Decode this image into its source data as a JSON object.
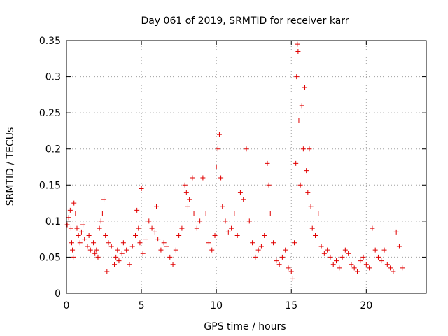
{
  "chart_data": {
    "type": "scatter",
    "title": "Day 061 of 2019, SRMTID for receiver karr",
    "xlabel": "GPS time / hours",
    "ylabel": "SRMTID / TECUs",
    "xlim": [
      0,
      24
    ],
    "ylim": [
      0,
      0.35
    ],
    "xticks": [
      0,
      5,
      10,
      15,
      20
    ],
    "yticks": [
      0,
      0.05,
      0.1,
      0.15,
      0.2,
      0.25,
      0.3,
      0.35
    ],
    "ytick_labels": [
      "0",
      "0.05",
      "0.1",
      "0.15",
      "0.2",
      "0.25",
      "0.3",
      "0.35"
    ],
    "grid": true,
    "marker": "+",
    "color": "#e00000",
    "series": [
      {
        "name": "SRMTID",
        "points": [
          [
            0.05,
            0.095
          ],
          [
            0.15,
            0.105
          ],
          [
            0.25,
            0.115
          ],
          [
            0.3,
            0.09
          ],
          [
            0.35,
            0.07
          ],
          [
            0.4,
            0.06
          ],
          [
            0.45,
            0.05
          ],
          [
            0.5,
            0.125
          ],
          [
            0.6,
            0.11
          ],
          [
            0.7,
            0.09
          ],
          [
            0.8,
            0.08
          ],
          [
            0.9,
            0.07
          ],
          [
            1.0,
            0.085
          ],
          [
            1.1,
            0.095
          ],
          [
            1.2,
            0.075
          ],
          [
            1.4,
            0.065
          ],
          [
            1.5,
            0.08
          ],
          [
            1.6,
            0.06
          ],
          [
            1.8,
            0.07
          ],
          [
            1.9,
            0.055
          ],
          [
            2.0,
            0.06
          ],
          [
            2.1,
            0.05
          ],
          [
            2.2,
            0.09
          ],
          [
            2.3,
            0.1
          ],
          [
            2.4,
            0.11
          ],
          [
            2.5,
            0.13
          ],
          [
            2.6,
            0.08
          ],
          [
            2.7,
            0.03
          ],
          [
            2.8,
            0.07
          ],
          [
            3.0,
            0.065
          ],
          [
            3.2,
            0.04
          ],
          [
            3.3,
            0.05
          ],
          [
            3.4,
            0.06
          ],
          [
            3.5,
            0.045
          ],
          [
            3.7,
            0.055
          ],
          [
            3.8,
            0.07
          ],
          [
            4.0,
            0.06
          ],
          [
            4.2,
            0.04
          ],
          [
            4.4,
            0.065
          ],
          [
            4.6,
            0.08
          ],
          [
            4.7,
            0.115
          ],
          [
            4.8,
            0.09
          ],
          [
            4.9,
            0.07
          ],
          [
            5.0,
            0.145
          ],
          [
            5.1,
            0.055
          ],
          [
            5.3,
            0.075
          ],
          [
            5.5,
            0.1
          ],
          [
            5.7,
            0.09
          ],
          [
            5.9,
            0.085
          ],
          [
            6.0,
            0.12
          ],
          [
            6.1,
            0.075
          ],
          [
            6.3,
            0.06
          ],
          [
            6.5,
            0.07
          ],
          [
            6.7,
            0.065
          ],
          [
            6.9,
            0.05
          ],
          [
            7.1,
            0.04
          ],
          [
            7.3,
            0.06
          ],
          [
            7.5,
            0.08
          ],
          [
            7.7,
            0.09
          ],
          [
            7.9,
            0.15
          ],
          [
            8.0,
            0.14
          ],
          [
            8.1,
            0.12
          ],
          [
            8.2,
            0.13
          ],
          [
            8.4,
            0.16
          ],
          [
            8.5,
            0.11
          ],
          [
            8.7,
            0.09
          ],
          [
            8.9,
            0.1
          ],
          [
            9.1,
            0.16
          ],
          [
            9.3,
            0.11
          ],
          [
            9.5,
            0.07
          ],
          [
            9.7,
            0.06
          ],
          [
            9.9,
            0.08
          ],
          [
            10.0,
            0.175
          ],
          [
            10.1,
            0.2
          ],
          [
            10.2,
            0.22
          ],
          [
            10.3,
            0.16
          ],
          [
            10.4,
            0.12
          ],
          [
            10.6,
            0.1
          ],
          [
            10.8,
            0.085
          ],
          [
            11.0,
            0.09
          ],
          [
            11.2,
            0.11
          ],
          [
            11.4,
            0.08
          ],
          [
            11.6,
            0.14
          ],
          [
            11.8,
            0.13
          ],
          [
            12.0,
            0.2
          ],
          [
            12.2,
            0.1
          ],
          [
            12.4,
            0.07
          ],
          [
            12.6,
            0.05
          ],
          [
            12.8,
            0.06
          ],
          [
            13.0,
            0.065
          ],
          [
            13.2,
            0.08
          ],
          [
            13.4,
            0.18
          ],
          [
            13.5,
            0.15
          ],
          [
            13.6,
            0.11
          ],
          [
            13.8,
            0.07
          ],
          [
            14.0,
            0.045
          ],
          [
            14.2,
            0.04
          ],
          [
            14.4,
            0.05
          ],
          [
            14.6,
            0.06
          ],
          [
            14.8,
            0.035
          ],
          [
            15.0,
            0.03
          ],
          [
            15.1,
            0.02
          ],
          [
            15.2,
            0.07
          ],
          [
            15.3,
            0.18
          ],
          [
            15.35,
            0.3
          ],
          [
            15.4,
            0.345
          ],
          [
            15.45,
            0.335
          ],
          [
            15.5,
            0.24
          ],
          [
            15.6,
            0.15
          ],
          [
            15.7,
            0.26
          ],
          [
            15.8,
            0.2
          ],
          [
            15.9,
            0.285
          ],
          [
            16.0,
            0.17
          ],
          [
            16.1,
            0.14
          ],
          [
            16.2,
            0.2
          ],
          [
            16.3,
            0.12
          ],
          [
            16.4,
            0.09
          ],
          [
            16.6,
            0.08
          ],
          [
            16.8,
            0.11
          ],
          [
            17.0,
            0.065
          ],
          [
            17.2,
            0.055
          ],
          [
            17.4,
            0.06
          ],
          [
            17.6,
            0.05
          ],
          [
            17.8,
            0.04
          ],
          [
            18.0,
            0.045
          ],
          [
            18.2,
            0.035
          ],
          [
            18.4,
            0.05
          ],
          [
            18.6,
            0.06
          ],
          [
            18.8,
            0.055
          ],
          [
            19.0,
            0.04
          ],
          [
            19.2,
            0.035
          ],
          [
            19.4,
            0.03
          ],
          [
            19.6,
            0.045
          ],
          [
            19.8,
            0.05
          ],
          [
            20.0,
            0.04
          ],
          [
            20.2,
            0.035
          ],
          [
            20.4,
            0.09
          ],
          [
            20.6,
            0.06
          ],
          [
            20.8,
            0.05
          ],
          [
            21.0,
            0.045
          ],
          [
            21.2,
            0.06
          ],
          [
            21.4,
            0.04
          ],
          [
            21.6,
            0.035
          ],
          [
            21.8,
            0.03
          ],
          [
            22.0,
            0.085
          ],
          [
            22.2,
            0.065
          ],
          [
            22.4,
            0.035
          ]
        ]
      }
    ]
  }
}
